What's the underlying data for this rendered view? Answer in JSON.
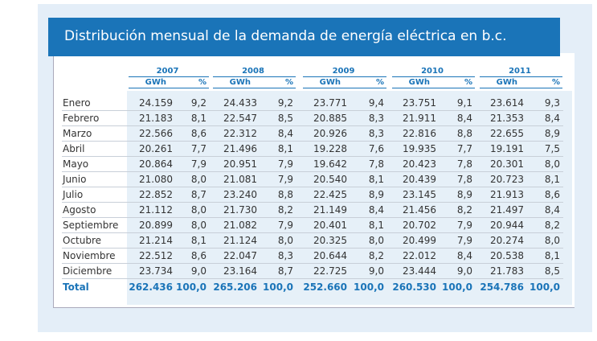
{
  "header": {
    "title": "Distribución mensual de la demanda de energía eléctrica en b.c."
  },
  "table": {
    "columns": [
      {
        "year": "2007",
        "units": [
          "GWh",
          "%"
        ]
      },
      {
        "year": "2008",
        "units": [
          "GWh",
          "%"
        ]
      },
      {
        "year": "2009",
        "units": [
          "GWh",
          "%"
        ]
      },
      {
        "year": "2010",
        "units": [
          "GWh",
          "%"
        ]
      },
      {
        "year": "2011",
        "units": [
          "GWh",
          "%"
        ]
      }
    ],
    "rows": [
      [
        "Enero",
        "24.159",
        "9,2",
        "24.433",
        "9,2",
        "23.771",
        "9,4",
        "23.751",
        "9,1",
        "23.614",
        "9,3"
      ],
      [
        "Febrero",
        "21.183",
        "8,1",
        "22.547",
        "8,5",
        "20.885",
        "8,3",
        "21.911",
        "8,4",
        "21.353",
        "8,4"
      ],
      [
        "Marzo",
        "22.566",
        "8,6",
        "22.312",
        "8,4",
        "20.926",
        "8,3",
        "22.816",
        "8,8",
        "22.655",
        "8,9"
      ],
      [
        "Abril",
        "20.261",
        "7,7",
        "21.496",
        "8,1",
        "19.228",
        "7,6",
        "19.935",
        "7,7",
        "19.191",
        "7,5"
      ],
      [
        "Mayo",
        "20.864",
        "7,9",
        "20.951",
        "7,9",
        "19.642",
        "7,8",
        "20.423",
        "7,8",
        "20.301",
        "8,0"
      ],
      [
        "Junio",
        "21.080",
        "8,0",
        "21.081",
        "7,9",
        "20.540",
        "8,1",
        "20.439",
        "7,8",
        "20.723",
        "8,1"
      ],
      [
        "Julio",
        "22.852",
        "8,7",
        "23.240",
        "8,8",
        "22.425",
        "8,9",
        "23.145",
        "8,9",
        "21.913",
        "8,6"
      ],
      [
        "Agosto",
        "21.112",
        "8,0",
        "21.730",
        "8,2",
        "21.149",
        "8,4",
        "21.456",
        "8,2",
        "21.497",
        "8,4"
      ],
      [
        "Septiembre",
        "20.899",
        "8,0",
        "21.082",
        "7,9",
        "20.401",
        "8,1",
        "20.702",
        "7,9",
        "20.944",
        "8,2"
      ],
      [
        "Octubre",
        "21.214",
        "8,1",
        "21.124",
        "8,0",
        "20.325",
        "8,0",
        "20.499",
        "7,9",
        "20.274",
        "8,0"
      ],
      [
        "Noviembre",
        "22.512",
        "8,6",
        "22.047",
        "8,3",
        "20.644",
        "8,2",
        "22.012",
        "8,4",
        "20.538",
        "8,1"
      ],
      [
        "Diciembre",
        "23.734",
        "9,0",
        "23.164",
        "8,7",
        "22.725",
        "9,0",
        "23.444",
        "9,0",
        "21.783",
        "8,5"
      ]
    ],
    "total": [
      "Total",
      "262.436",
      "100,0",
      "265.206",
      "100,0",
      "252.660",
      "100,0",
      "260.530",
      "100,0",
      "254.786",
      "100,0"
    ]
  }
}
